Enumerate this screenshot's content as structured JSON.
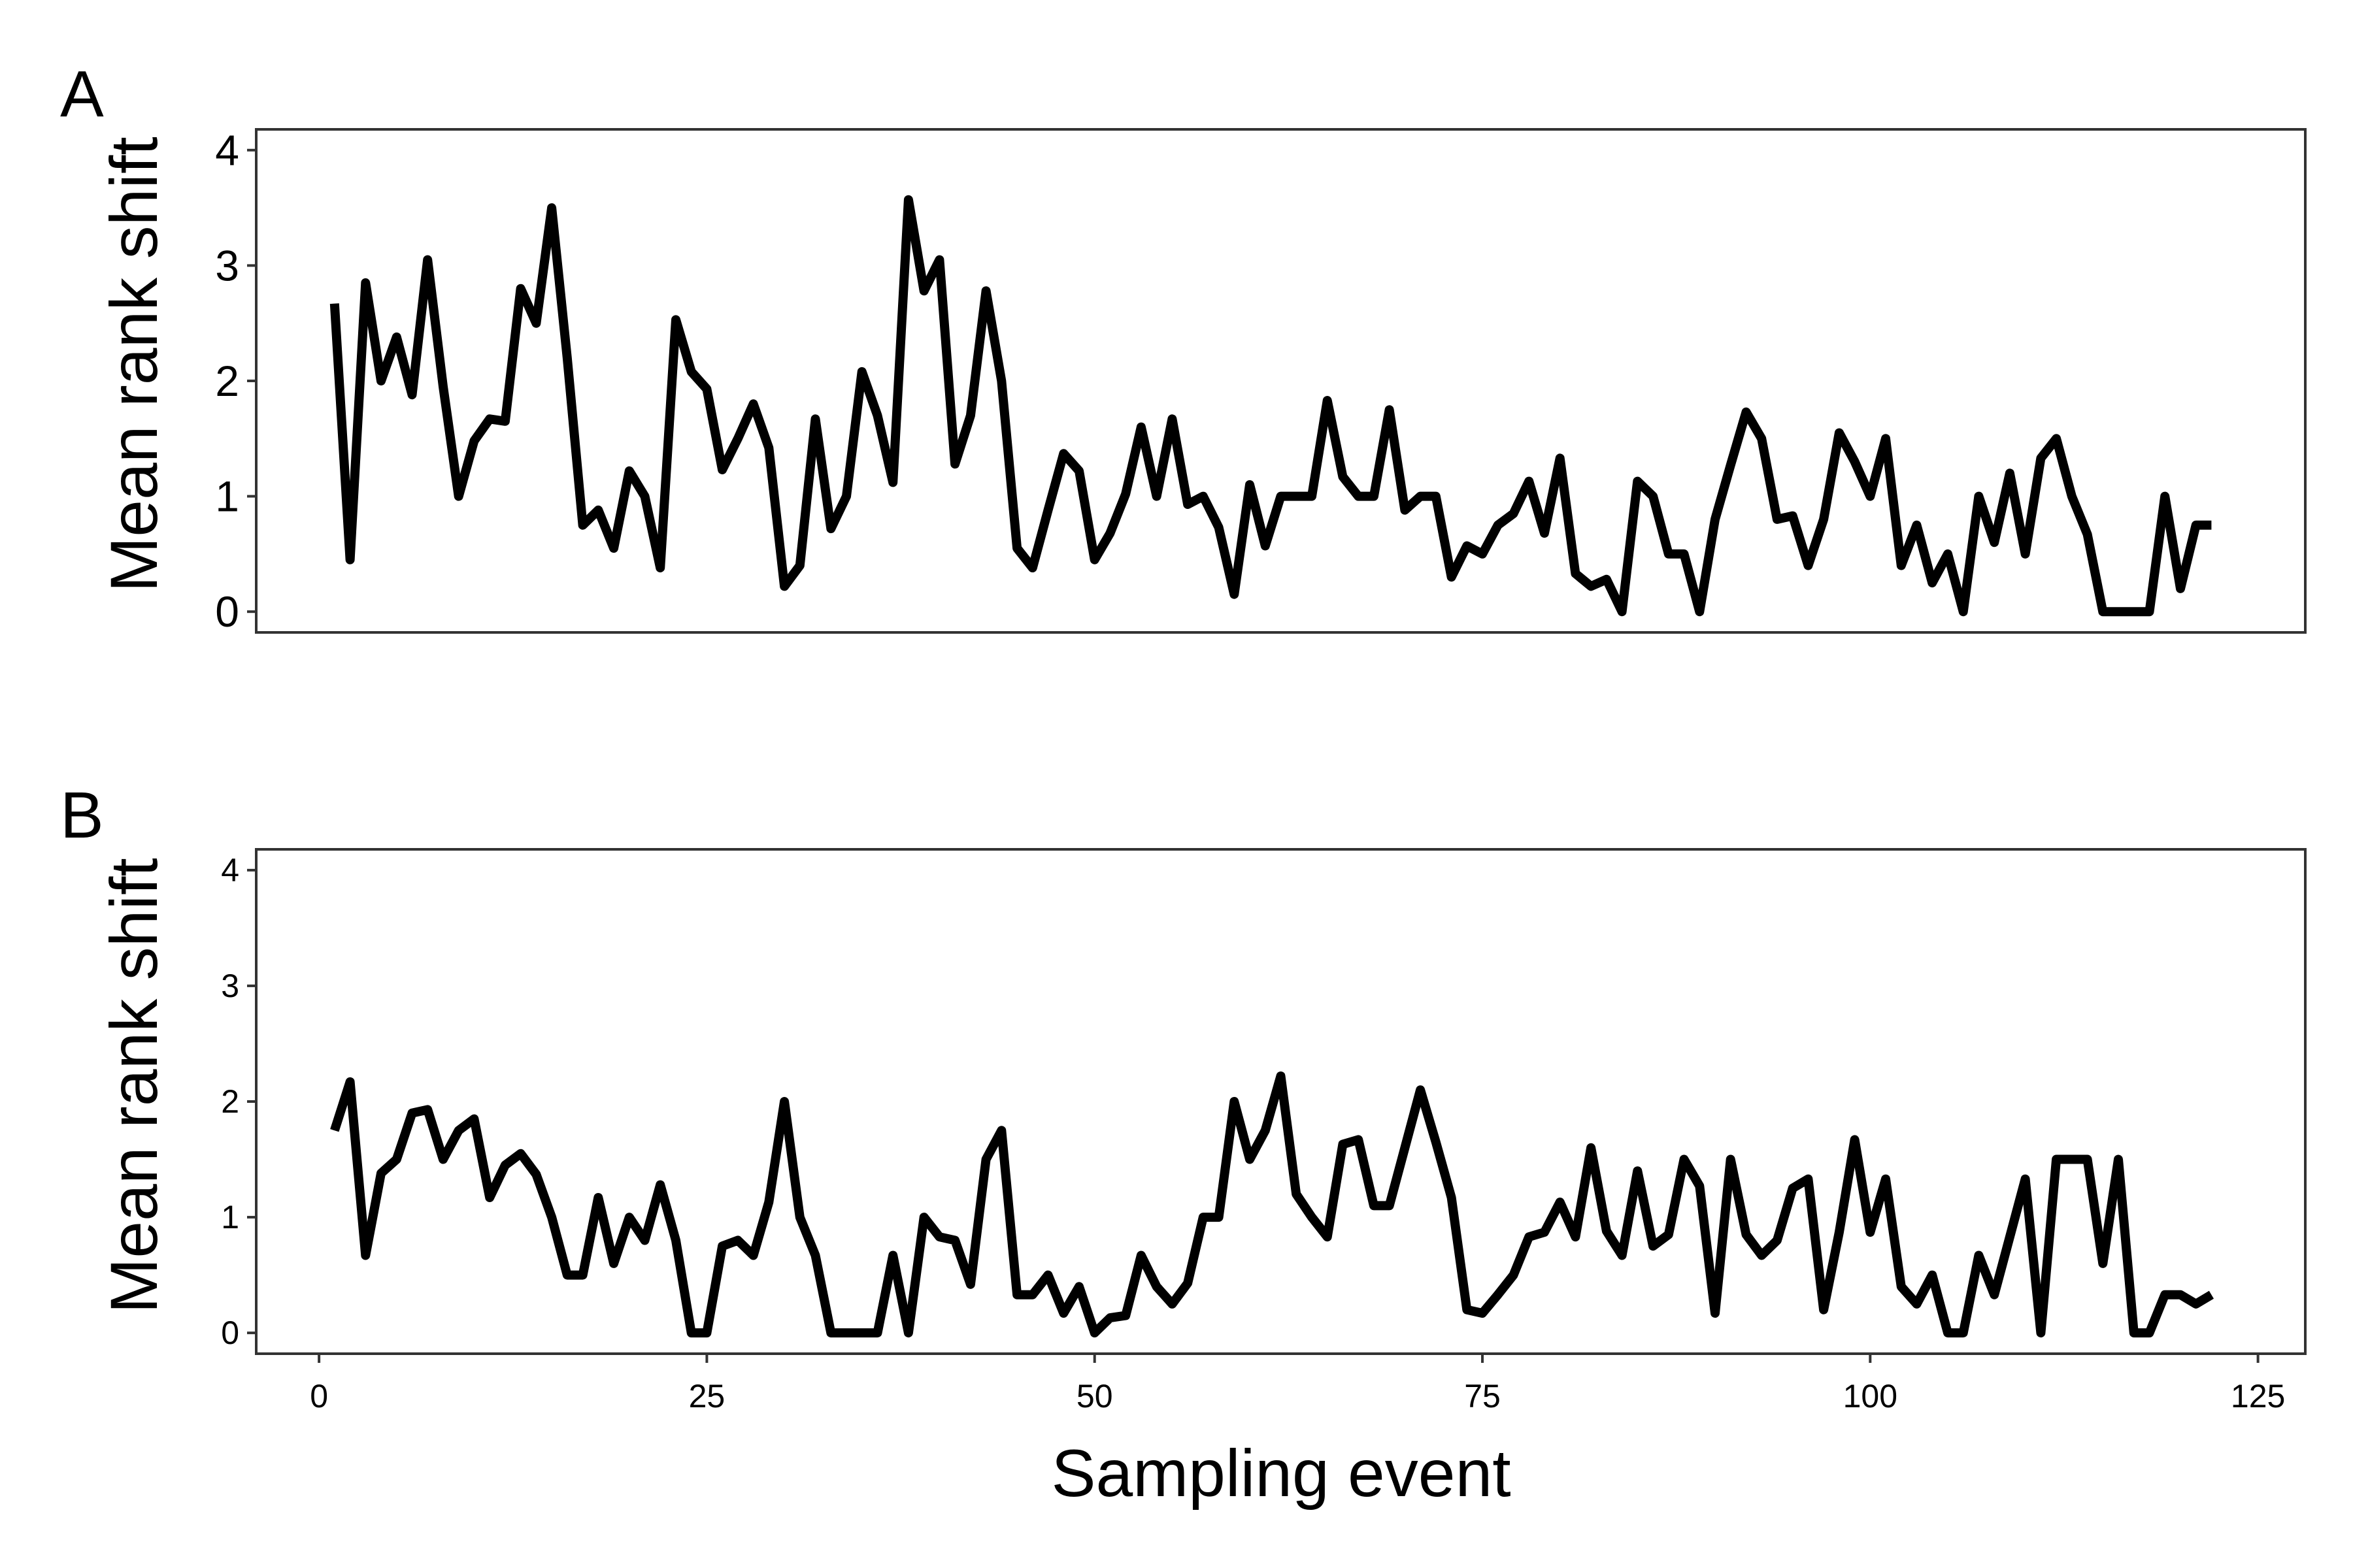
{
  "figure": {
    "xlabel": "Sampling event",
    "line_color": "#000000",
    "panel_border_color": "#333333",
    "background": "#ffffff"
  },
  "chart_data": [
    {
      "type": "line",
      "panel_label": "A",
      "title": "",
      "xlabel": "",
      "ylabel": "Mean rank shift",
      "xlim": [
        -4.05,
        128.05
      ],
      "ylim": [
        -0.18,
        4.18
      ],
      "xticks": [
        0,
        25,
        50,
        75,
        100,
        125
      ],
      "xticks_shown": false,
      "yticks": [
        0,
        1,
        2,
        3,
        4
      ],
      "grid": false,
      "legend": "none",
      "x": [
        1,
        2,
        3,
        4,
        5,
        6,
        7,
        8,
        9,
        10,
        11,
        12,
        13,
        14,
        15,
        16,
        17,
        18,
        19,
        20,
        21,
        22,
        23,
        24,
        25,
        26,
        27,
        28,
        29,
        30,
        31,
        32,
        33,
        34,
        35,
        36,
        37,
        38,
        39,
        40,
        41,
        42,
        43,
        44,
        45,
        46,
        47,
        48,
        49,
        50,
        51,
        52,
        53,
        54,
        55,
        56,
        57,
        58,
        59,
        60,
        61,
        62,
        63,
        64,
        65,
        66,
        67,
        68,
        69,
        70,
        71,
        72,
        73,
        74,
        75,
        76,
        77,
        78,
        79,
        80,
        81,
        82,
        83,
        84,
        85,
        86,
        87,
        88,
        89,
        90,
        91,
        92,
        93,
        94,
        95,
        96,
        97,
        98,
        99,
        100,
        101,
        102,
        103,
        104,
        105,
        106,
        107,
        108,
        109,
        110,
        111,
        112,
        113,
        114,
        115,
        116,
        117,
        118,
        119,
        120,
        121,
        122
      ],
      "series": [
        {
          "values": [
            2.67,
            0.45,
            2.85,
            2.0,
            2.38,
            1.88,
            3.05,
            1.95,
            1.0,
            1.48,
            1.67,
            1.65,
            2.8,
            2.5,
            3.5,
            2.2,
            0.75,
            0.88,
            0.55,
            1.22,
            1.0,
            0.38,
            2.53,
            2.08,
            1.93,
            1.23,
            1.5,
            1.8,
            1.42,
            0.22,
            0.4,
            1.67,
            0.72,
            1.0,
            2.08,
            1.7,
            1.12,
            3.57,
            2.78,
            3.05,
            1.28,
            1.7,
            2.78,
            2.0,
            0.55,
            0.38,
            0.88,
            1.37,
            1.22,
            0.45,
            0.68,
            1.02,
            1.6,
            1.0,
            1.67,
            0.93,
            1.0,
            0.73,
            0.15,
            1.1,
            0.57,
            1.0,
            1.0,
            1.0,
            1.83,
            1.17,
            1.0,
            1.0,
            1.75,
            0.88,
            1.0,
            1.0,
            0.3,
            0.57,
            0.5,
            0.75,
            0.85,
            1.13,
            0.68,
            1.33,
            0.33,
            0.22,
            0.28,
            0.0,
            1.13,
            1.0,
            0.5,
            0.5,
            0.0,
            0.8,
            1.27,
            1.73,
            1.5,
            0.8,
            0.83,
            0.4,
            0.8,
            1.55,
            1.3,
            1.0,
            1.5,
            0.4,
            0.75,
            0.25,
            0.5,
            0.0,
            1.0,
            0.6,
            1.2,
            0.5,
            1.33,
            1.5,
            1.0,
            0.67,
            0.0,
            0.0,
            0.0,
            0.0,
            1.0,
            0.2,
            0.75,
            0.75
          ]
        }
      ]
    },
    {
      "type": "line",
      "panel_label": "B",
      "title": "",
      "xlabel": "Sampling event",
      "ylabel": "Mean rank shift",
      "xlim": [
        -4.05,
        128.05
      ],
      "ylim": [
        -0.18,
        4.18
      ],
      "xticks": [
        0,
        25,
        50,
        75,
        100,
        125
      ],
      "xticks_shown": true,
      "yticks": [
        0,
        1,
        2,
        3,
        4
      ],
      "grid": false,
      "legend": "none",
      "x": [
        1,
        2,
        3,
        4,
        5,
        6,
        7,
        8,
        9,
        10,
        11,
        12,
        13,
        14,
        15,
        16,
        17,
        18,
        19,
        20,
        21,
        22,
        23,
        24,
        25,
        26,
        27,
        28,
        29,
        30,
        31,
        32,
        33,
        34,
        35,
        36,
        37,
        38,
        39,
        40,
        41,
        42,
        43,
        44,
        45,
        46,
        47,
        48,
        49,
        50,
        51,
        52,
        53,
        54,
        55,
        56,
        57,
        58,
        59,
        60,
        61,
        62,
        63,
        64,
        65,
        66,
        67,
        68,
        69,
        70,
        71,
        72,
        73,
        74,
        75,
        76,
        77,
        78,
        79,
        80,
        81,
        82,
        83,
        84,
        85,
        86,
        87,
        88,
        89,
        90,
        91,
        92,
        93,
        94,
        95,
        96,
        97,
        98,
        99,
        100,
        101,
        102,
        103,
        104,
        105,
        106,
        107,
        108,
        109,
        110,
        111,
        112,
        113,
        114,
        115,
        116,
        117,
        118,
        119,
        120,
        121,
        122
      ],
      "series": [
        {
          "values": [
            1.75,
            2.17,
            0.67,
            1.38,
            1.5,
            1.9,
            1.93,
            1.5,
            1.75,
            1.85,
            1.17,
            1.45,
            1.55,
            1.37,
            1.0,
            0.5,
            0.5,
            1.17,
            0.6,
            1.0,
            0.8,
            1.28,
            0.8,
            0.0,
            0.0,
            0.75,
            0.8,
            0.67,
            1.13,
            2.0,
            1.0,
            0.67,
            0.0,
            0.0,
            0.0,
            0.0,
            0.67,
            0.0,
            1.0,
            0.83,
            0.8,
            0.42,
            1.5,
            1.75,
            0.33,
            0.33,
            0.5,
            0.17,
            0.4,
            0.0,
            0.13,
            0.15,
            0.67,
            0.4,
            0.25,
            0.43,
            1.0,
            1.0,
            2.0,
            1.5,
            1.75,
            2.22,
            1.2,
            1.0,
            0.83,
            1.63,
            1.67,
            1.1,
            1.1,
            1.6,
            2.1,
            1.65,
            1.17,
            0.2,
            0.17,
            0.33,
            0.5,
            0.83,
            0.87,
            1.13,
            0.83,
            1.6,
            0.88,
            0.67,
            1.4,
            0.75,
            0.85,
            1.5,
            1.27,
            0.17,
            1.5,
            0.85,
            0.67,
            0.8,
            1.25,
            1.33,
            0.2,
            0.87,
            1.67,
            0.87,
            1.33,
            0.4,
            0.25,
            0.5,
            0.0,
            0.0,
            0.67,
            0.33,
            0.83,
            1.33,
            0.0,
            1.5,
            1.5,
            1.5,
            0.6,
            1.5,
            0.0,
            0.0,
            0.33,
            0.33,
            0.25,
            0.33
          ]
        }
      ]
    }
  ]
}
